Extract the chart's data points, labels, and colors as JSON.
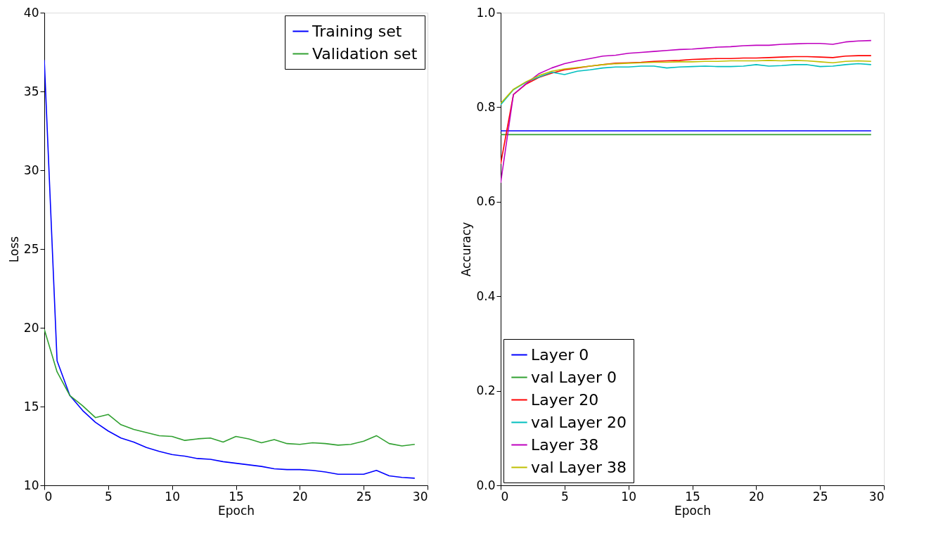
{
  "chart_data": [
    {
      "type": "line",
      "xlabel": "Epoch",
      "ylabel": "Loss",
      "x": [
        0,
        1,
        2,
        3,
        4,
        5,
        6,
        7,
        8,
        9,
        10,
        11,
        12,
        13,
        14,
        15,
        16,
        17,
        18,
        19,
        20,
        21,
        22,
        23,
        24,
        25,
        26,
        27,
        28,
        29
      ],
      "xlim": [
        0,
        30
      ],
      "ylim": [
        10,
        40
      ],
      "xticks": [
        0,
        5,
        10,
        15,
        20,
        25,
        30
      ],
      "yticks": [
        10,
        15,
        20,
        25,
        30,
        35,
        40
      ],
      "legend": "top right",
      "grid": false,
      "series": [
        {
          "name": "Training set",
          "color": "#0000ff",
          "values": [
            37,
            17.9,
            15.7,
            14.75,
            14.0,
            13.45,
            13.0,
            12.75,
            12.4,
            12.15,
            11.95,
            11.85,
            11.7,
            11.65,
            11.5,
            11.4,
            11.3,
            11.2,
            11.05,
            11.0,
            11.0,
            10.95,
            10.85,
            10.7,
            10.7,
            10.7,
            10.95,
            10.6,
            10.5,
            10.45
          ]
        },
        {
          "name": "Validation set",
          "color": "#30a030",
          "values": [
            19.9,
            17.2,
            15.7,
            15.05,
            14.3,
            14.5,
            13.85,
            13.55,
            13.35,
            13.15,
            13.1,
            12.85,
            12.95,
            13.0,
            12.75,
            13.1,
            12.95,
            12.7,
            12.9,
            12.65,
            12.6,
            12.7,
            12.65,
            12.55,
            12.6,
            12.8,
            13.15,
            12.65,
            12.5,
            12.6
          ]
        }
      ]
    },
    {
      "type": "line",
      "xlabel": "Epoch",
      "ylabel": "Accuracy",
      "x": [
        0,
        1,
        2,
        3,
        4,
        5,
        6,
        7,
        8,
        9,
        10,
        11,
        12,
        13,
        14,
        15,
        16,
        17,
        18,
        19,
        20,
        21,
        22,
        23,
        24,
        25,
        26,
        27,
        28,
        29
      ],
      "xlim": [
        0,
        30
      ],
      "ylim": [
        0,
        1
      ],
      "xticks": [
        0,
        5,
        10,
        15,
        20,
        25,
        30
      ],
      "yticks": [
        {
          "value": 0,
          "label": "0.0"
        },
        0.2,
        0.4,
        0.6,
        0.8,
        {
          "value": 1,
          "label": "1.0"
        }
      ],
      "legend": "bottom left",
      "grid": false,
      "series": [
        {
          "name": "Layer 0",
          "color": "#0000ff",
          "values": [
            0.75,
            0.75,
            0.75,
            0.75,
            0.75,
            0.75,
            0.75,
            0.75,
            0.75,
            0.75,
            0.75,
            0.75,
            0.75,
            0.75,
            0.75,
            0.75,
            0.75,
            0.75,
            0.75,
            0.75,
            0.75,
            0.75,
            0.75,
            0.75,
            0.75,
            0.75,
            0.75,
            0.75,
            0.75,
            0.75
          ]
        },
        {
          "name": "val Layer 0",
          "color": "#30a030",
          "values": [
            0.742,
            0.742,
            0.742,
            0.742,
            0.742,
            0.742,
            0.742,
            0.742,
            0.742,
            0.742,
            0.742,
            0.742,
            0.742,
            0.742,
            0.742,
            0.742,
            0.742,
            0.742,
            0.742,
            0.742,
            0.742,
            0.742,
            0.742,
            0.742,
            0.742,
            0.742,
            0.742,
            0.742,
            0.742,
            0.742
          ]
        },
        {
          "name": "Layer 20",
          "color": "#ff0000",
          "values": [
            0.68,
            0.827,
            0.849,
            0.863,
            0.872,
            0.879,
            0.883,
            0.887,
            0.89,
            0.893,
            0.894,
            0.895,
            0.897,
            0.898,
            0.899,
            0.901,
            0.902,
            0.903,
            0.903,
            0.904,
            0.904,
            0.905,
            0.906,
            0.907,
            0.907,
            0.906,
            0.905,
            0.908,
            0.909,
            0.909
          ]
        },
        {
          "name": "val Layer 20",
          "color": "#00bfbf",
          "values": [
            0.805,
            0.837,
            0.853,
            0.864,
            0.874,
            0.869,
            0.876,
            0.879,
            0.883,
            0.885,
            0.885,
            0.887,
            0.887,
            0.883,
            0.885,
            0.886,
            0.887,
            0.886,
            0.886,
            0.887,
            0.89,
            0.887,
            0.888,
            0.89,
            0.89,
            0.886,
            0.887,
            0.89,
            0.892,
            0.89
          ]
        },
        {
          "name": "Layer 38",
          "color": "#bf00bf",
          "values": [
            0.64,
            0.827,
            0.85,
            0.871,
            0.883,
            0.892,
            0.898,
            0.903,
            0.908,
            0.91,
            0.914,
            0.916,
            0.918,
            0.92,
            0.922,
            0.923,
            0.925,
            0.927,
            0.928,
            0.93,
            0.931,
            0.931,
            0.933,
            0.934,
            0.935,
            0.935,
            0.933,
            0.938,
            0.94,
            0.941
          ]
        },
        {
          "name": "val Layer 38",
          "color": "#bfbf00",
          "values": [
            0.808,
            0.838,
            0.854,
            0.867,
            0.876,
            0.881,
            0.884,
            0.887,
            0.89,
            0.892,
            0.893,
            0.894,
            0.895,
            0.895,
            0.896,
            0.896,
            0.897,
            0.897,
            0.898,
            0.898,
            0.898,
            0.899,
            0.898,
            0.899,
            0.898,
            0.896,
            0.894,
            0.897,
            0.898,
            0.897
          ]
        }
      ]
    }
  ]
}
